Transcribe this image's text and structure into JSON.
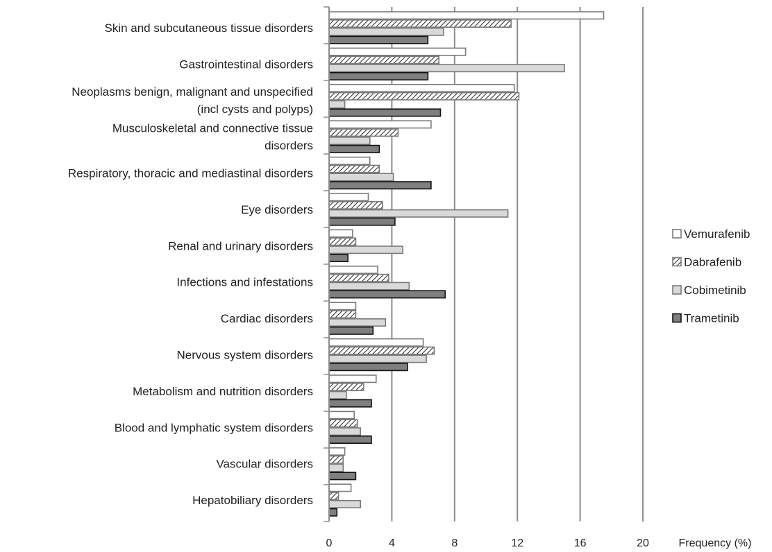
{
  "chart_data": {
    "type": "bar",
    "orientation": "horizontal",
    "title": "",
    "xlabel": "Frequency (%)",
    "ylabel": "",
    "xlim": [
      0,
      20
    ],
    "xticks": [
      0,
      4,
      8,
      12,
      16,
      20
    ],
    "grid": "vertical",
    "legend_position": "right",
    "categories": [
      [
        "Skin and subcutaneous tissue disorders"
      ],
      [
        "Gastrointestinal disorders"
      ],
      [
        "Neoplasms benign, malignant and unspecified",
        "(incl cysts and polyps)"
      ],
      [
        "Musculoskeletal and connective tissue",
        "disorders"
      ],
      [
        "Respiratory, thoracic and mediastinal disorders"
      ],
      [
        "Eye disorders"
      ],
      [
        "Renal and urinary disorders"
      ],
      [
        "Infections and infestations"
      ],
      [
        "Cardiac disorders"
      ],
      [
        "Nervous system disorders"
      ],
      [
        "Metabolism and nutrition disorders"
      ],
      [
        "Blood and lymphatic system disorders"
      ],
      [
        "Vascular disorders"
      ],
      [
        "Hepatobiliary disorders"
      ]
    ],
    "series": [
      {
        "name": "Vemurafenib",
        "fill": "#ffffff",
        "pattern": "none",
        "values": [
          17.5,
          8.7,
          11.8,
          6.5,
          2.6,
          2.5,
          1.5,
          3.1,
          1.7,
          6.0,
          3.0,
          1.6,
          1.0,
          1.4
        ]
      },
      {
        "name": "Dabrafenib",
        "fill": "#ffffff",
        "pattern": "diagonal-hatch",
        "values": [
          11.6,
          7.0,
          12.1,
          4.4,
          3.2,
          3.4,
          1.7,
          3.8,
          1.7,
          6.7,
          2.2,
          1.8,
          0.9,
          0.6
        ]
      },
      {
        "name": "Cobimetinib",
        "fill": "#d9d9d9",
        "pattern": "none",
        "values": [
          7.3,
          15.0,
          1.0,
          2.6,
          4.1,
          11.4,
          4.7,
          5.1,
          3.6,
          6.2,
          1.1,
          2.0,
          0.9,
          2.0
        ]
      },
      {
        "name": "Trametinib",
        "fill": "#7f7f7f",
        "pattern": "none",
        "values": [
          6.3,
          6.3,
          7.1,
          3.2,
          6.5,
          4.2,
          1.2,
          7.4,
          2.8,
          5.0,
          2.7,
          2.7,
          1.7,
          0.5
        ]
      }
    ]
  }
}
